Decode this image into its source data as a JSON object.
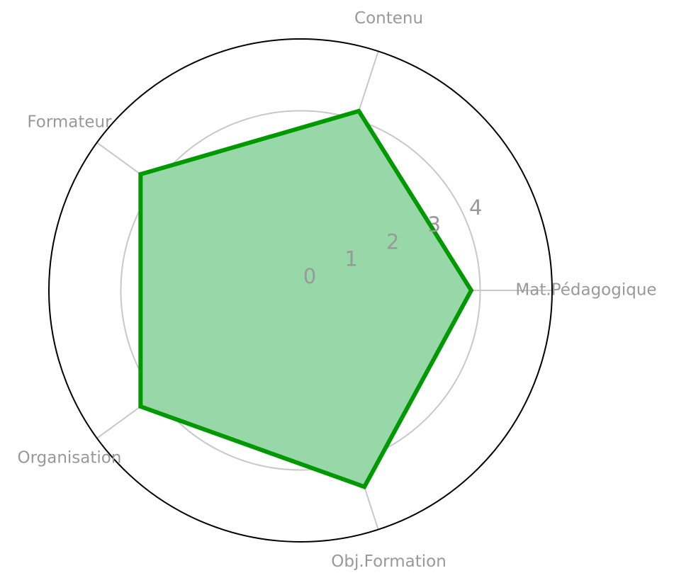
{
  "chart_data": {
    "type": "radar",
    "categories": [
      "Mat.Pédagogique",
      "Contenu",
      "Formateur",
      "Organisation",
      "Obj.Formation"
    ],
    "values": [
      3.8,
      4.2,
      4.4,
      4.4,
      4.6
    ],
    "color": "#009900",
    "fill": "#98d8a8",
    "ylim": [
      0,
      5.6
    ],
    "yticks": [
      0,
      1,
      2,
      3,
      4
    ],
    "grid": true
  }
}
